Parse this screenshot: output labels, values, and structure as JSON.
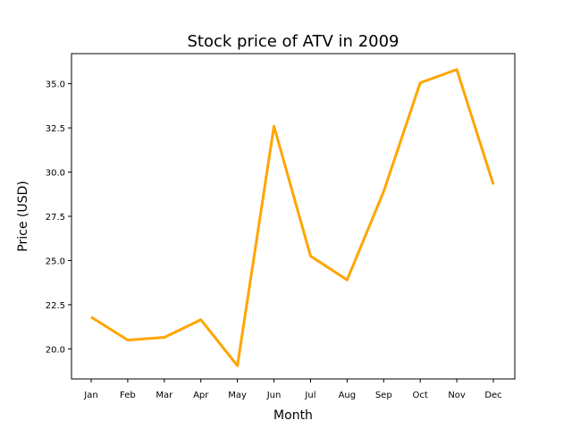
{
  "chart_data": {
    "type": "line",
    "title": "Stock price of ATV in 2009",
    "xlabel": "Month",
    "ylabel": "Price (USD)",
    "categories": [
      "Jan",
      "Feb",
      "Mar",
      "Apr",
      "May",
      "Jun",
      "Jul",
      "Aug",
      "Sep",
      "Oct",
      "Nov",
      "Dec"
    ],
    "series": [
      {
        "values": [
          21.8,
          20.5,
          20.65,
          21.65,
          19.05,
          32.6,
          25.25,
          23.9,
          28.9,
          35.05,
          35.8,
          29.3
        ],
        "color": "#FFA500"
      }
    ],
    "ylim": [
      18.3,
      36.7
    ],
    "yticks": [
      "20.0",
      "22.5",
      "25.0",
      "27.5",
      "30.0",
      "32.5",
      "35.0"
    ],
    "grid": false,
    "legend": "none"
  }
}
